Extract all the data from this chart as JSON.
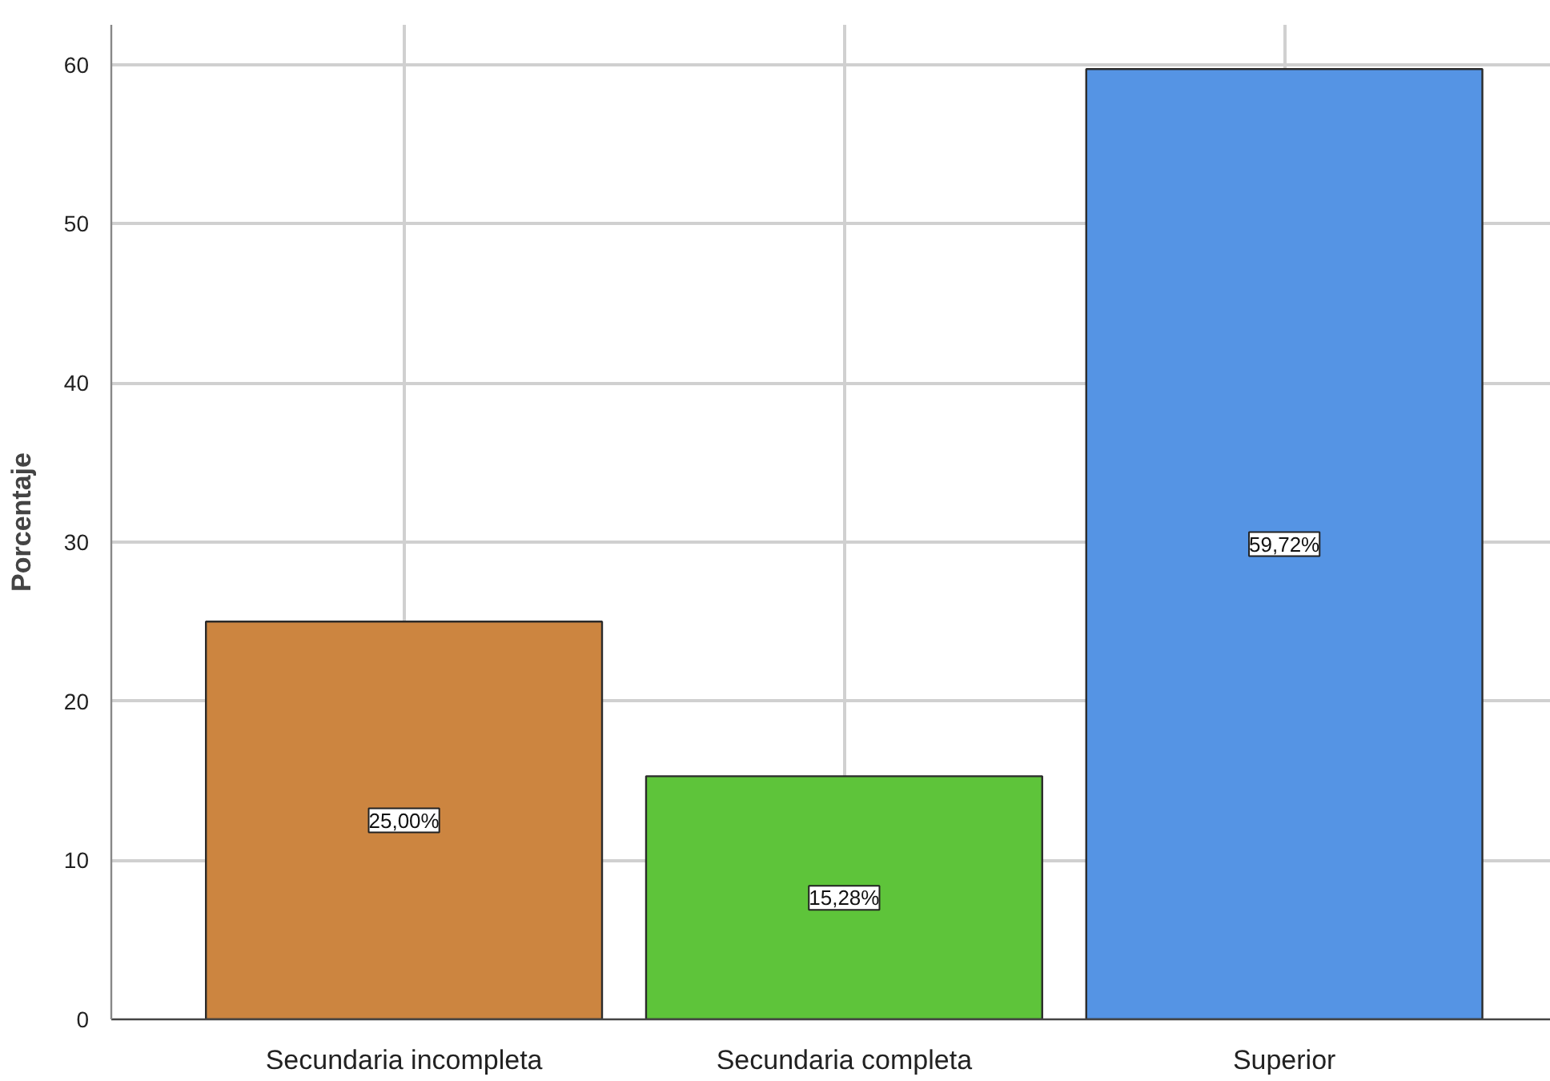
{
  "chart_data": {
    "type": "bar",
    "ylabel": "Porcentaje",
    "categories": [
      "Secundaria incompleta",
      "Secundaria completa",
      "Superior"
    ],
    "values": [
      25.0,
      15.28,
      59.72
    ],
    "colors": [
      "#cc8540",
      "#5ec43a",
      "#5594e4"
    ],
    "value_labels": [
      "25,00%",
      "15,28%",
      "59,72%"
    ],
    "ylim": [
      0,
      62.5
    ],
    "yticks": [
      0,
      10,
      20,
      30,
      40,
      50,
      60
    ],
    "grid": true
  }
}
